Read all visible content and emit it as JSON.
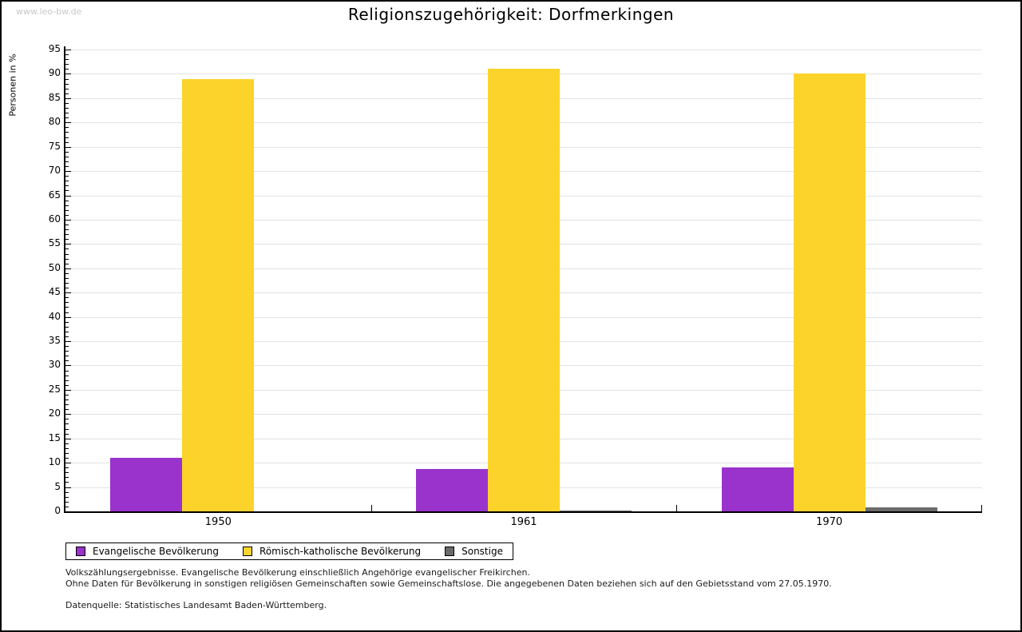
{
  "page": {
    "watermark": "www.leo-bw.de",
    "title": "Religionszugehörigkeit: Dorfmerkingen"
  },
  "chart_data": {
    "type": "bar",
    "title": "Religionszugehörigkeit: Dorfmerkingen",
    "ylabel": "Personen in %",
    "xlabel": "",
    "categories": [
      "1950",
      "1961",
      "1970"
    ],
    "series": [
      {
        "name": "Evangelische Bevölkerung",
        "color": "#9933cc",
        "values": [
          11,
          8.7,
          9.1
        ]
      },
      {
        "name": "Römisch-katholische Bevölkerung",
        "color": "#fcd32b",
        "values": [
          89,
          91,
          90
        ]
      },
      {
        "name": "Sonstige",
        "color": "#6b6b6b",
        "values": [
          0,
          0.2,
          0.9
        ]
      }
    ],
    "ylim": [
      0,
      95
    ],
    "ytick_step": 5,
    "yminor_step": 1,
    "grid": true,
    "gridline_color": "#e2e2e2",
    "legend_position": "bottom-left"
  },
  "footer": {
    "line1": "Volkszählungsergebnisse. Evangelische Bevölkerung einschließlich Angehörige evangelischer Freikirchen.",
    "line2": "Ohne Daten für Bevölkerung in sonstigen religiösen Gemeinschaften sowie Gemeinschaftslose. Die angegebenen Daten beziehen sich auf den Gebietsstand vom 27.05.1970.",
    "source": "Datenquelle: Statistisches Landesamt Baden-Württemberg."
  }
}
